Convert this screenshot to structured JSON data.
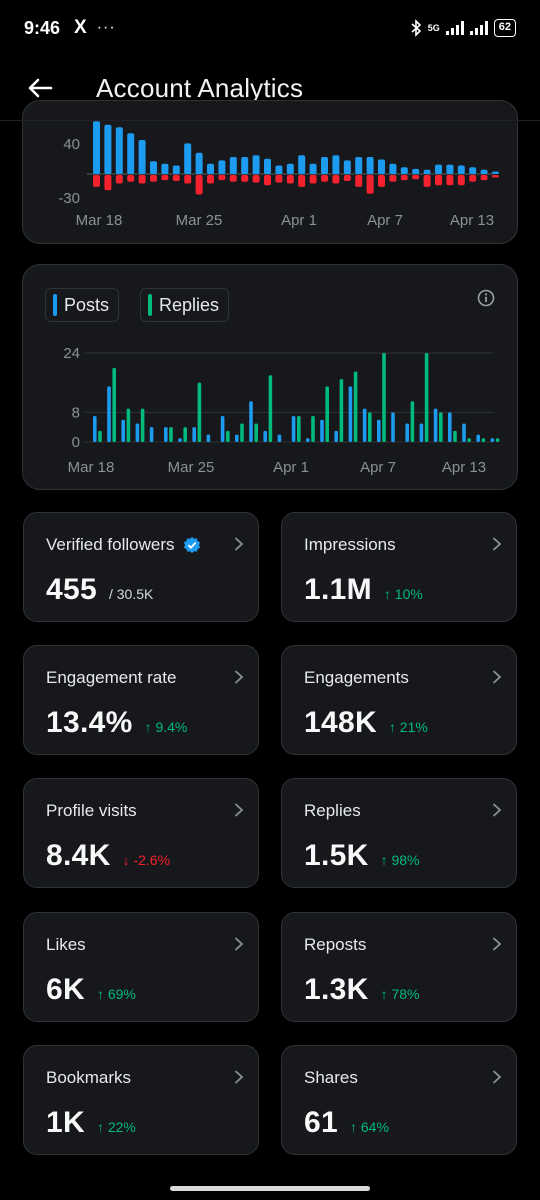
{
  "status_bar": {
    "time": "9:46",
    "app_icon": "X",
    "more": "···",
    "network": "5G",
    "battery": "62"
  },
  "header": {
    "title": "Account Analytics",
    "back_icon": "arrow-left-icon"
  },
  "colors": {
    "posts": "#1d9bf0",
    "replies": "#00ba7c",
    "negative": "#f4212e",
    "card_bg": "#16181c",
    "border": "#2f3336"
  },
  "chart_data": [
    {
      "type": "bar",
      "yticks": [
        "40",
        "-30"
      ],
      "xticks": [
        "Mar 18",
        "Mar 25",
        "Apr 1",
        "Apr 7",
        "Apr 13"
      ],
      "series": [
        {
          "values": [
            62,
            58,
            55,
            48,
            40,
            15,
            12,
            10,
            36,
            25,
            12,
            16,
            20,
            20,
            22,
            18,
            10,
            12,
            22,
            12,
            20,
            22,
            16,
            20,
            20,
            17,
            12,
            8,
            6,
            5,
            11,
            11,
            10,
            8,
            5,
            3
          ]
        },
        {
          "values": [
            -14,
            -18,
            -10,
            -8,
            -10,
            -8,
            -6,
            -7,
            -10,
            -23,
            -10,
            -6,
            -8,
            -8,
            -9,
            -12,
            -9,
            -10,
            -14,
            -10,
            -8,
            -10,
            -7,
            -14,
            -22,
            -14,
            -8,
            -6,
            -5,
            -14,
            -12,
            -12,
            -12,
            -8,
            -6,
            -3
          ]
        }
      ]
    },
    {
      "type": "bar",
      "legend": [
        "Posts",
        "Replies"
      ],
      "yticks": [
        "24",
        "8",
        "0"
      ],
      "ylim": [
        0,
        24
      ],
      "xticks": [
        "Mar 18",
        "Mar 25",
        "Apr 1",
        "Apr 7",
        "Apr 13"
      ],
      "categories_count": 29,
      "series": [
        {
          "name": "Posts",
          "values": [
            7,
            15,
            6,
            5,
            4,
            4,
            1,
            4,
            2,
            7,
            2,
            11,
            3,
            2,
            7,
            1,
            6,
            3,
            15,
            9,
            6,
            8,
            5,
            5,
            9,
            8,
            5,
            2,
            1
          ]
        },
        {
          "name": "Replies",
          "values": [
            3,
            20,
            9,
            9,
            0,
            4,
            4,
            16,
            0,
            3,
            5,
            5,
            18,
            0,
            7,
            7,
            15,
            17,
            19,
            8,
            24,
            0,
            11,
            24,
            8,
            3,
            1,
            1,
            1
          ]
        }
      ]
    }
  ],
  "metrics": [
    {
      "label": "Verified followers",
      "value": "455",
      "sub": "/ 30.5K",
      "delta": "",
      "dir": "",
      "verified": true
    },
    {
      "label": "Impressions",
      "value": "1.1M",
      "sub": "",
      "delta": "↑ 10%",
      "dir": "up"
    },
    {
      "label": "Engagement rate",
      "value": "13.4%",
      "sub": "",
      "delta": "↑ 9.4%",
      "dir": "up"
    },
    {
      "label": "Engagements",
      "value": "148K",
      "sub": "",
      "delta": "↑ 21%",
      "dir": "up"
    },
    {
      "label": "Profile visits",
      "value": "8.4K",
      "sub": "",
      "delta": "↓ -2.6%",
      "dir": "down"
    },
    {
      "label": "Replies",
      "value": "1.5K",
      "sub": "",
      "delta": "↑ 98%",
      "dir": "up"
    },
    {
      "label": "Likes",
      "value": "6K",
      "sub": "",
      "delta": "↑ 69%",
      "dir": "up"
    },
    {
      "label": "Reposts",
      "value": "1.3K",
      "sub": "",
      "delta": "↑ 78%",
      "dir": "up"
    },
    {
      "label": "Bookmarks",
      "value": "1K",
      "sub": "",
      "delta": "↑ 22%",
      "dir": "up"
    },
    {
      "label": "Shares",
      "value": "61",
      "sub": "",
      "delta": "↑ 64%",
      "dir": "up"
    }
  ]
}
